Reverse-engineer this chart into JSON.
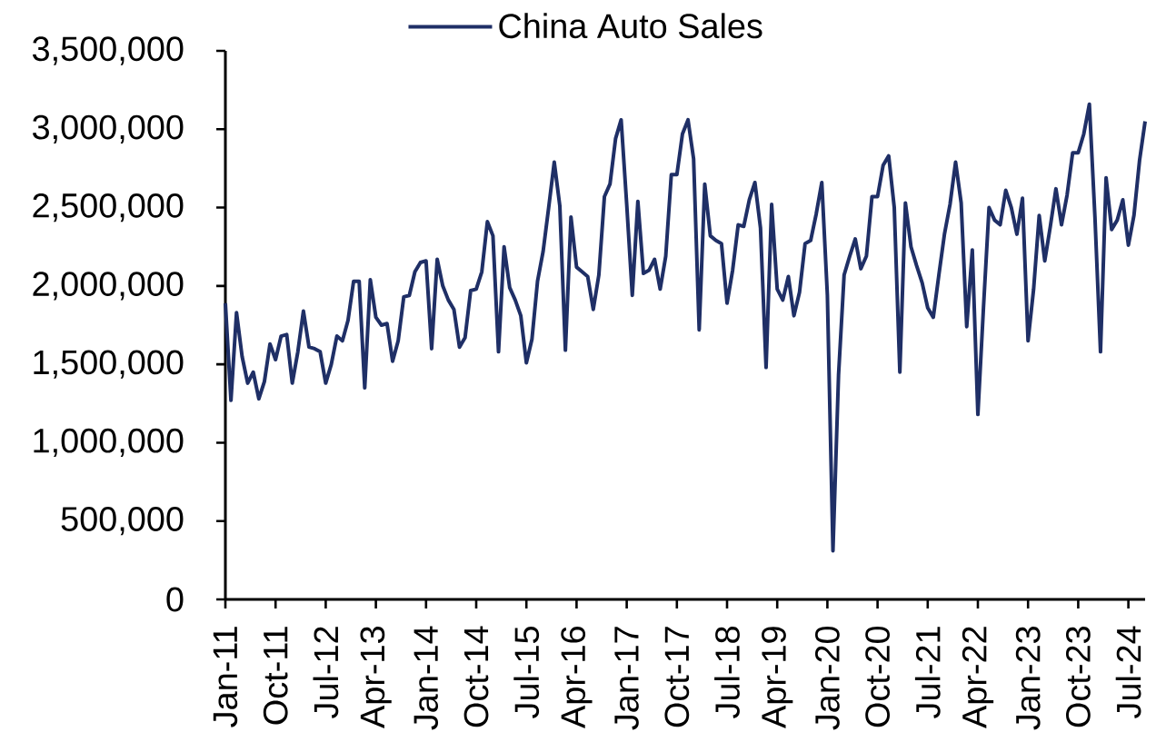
{
  "chart_data": {
    "type": "line",
    "x": [
      "2011-01",
      "2011-02",
      "2011-03",
      "2011-04",
      "2011-05",
      "2011-06",
      "2011-07",
      "2011-08",
      "2011-09",
      "2011-10",
      "2011-11",
      "2011-12",
      "2012-01",
      "2012-02",
      "2012-03",
      "2012-04",
      "2012-05",
      "2012-06",
      "2012-07",
      "2012-08",
      "2012-09",
      "2012-10",
      "2012-11",
      "2012-12",
      "2013-01",
      "2013-02",
      "2013-03",
      "2013-04",
      "2013-05",
      "2013-06",
      "2013-07",
      "2013-08",
      "2013-09",
      "2013-10",
      "2013-11",
      "2013-12",
      "2014-01",
      "2014-02",
      "2014-03",
      "2014-04",
      "2014-05",
      "2014-06",
      "2014-07",
      "2014-08",
      "2014-09",
      "2014-10",
      "2014-11",
      "2014-12",
      "2015-01",
      "2015-02",
      "2015-03",
      "2015-04",
      "2015-05",
      "2015-06",
      "2015-07",
      "2015-08",
      "2015-09",
      "2015-10",
      "2015-11",
      "2015-12",
      "2016-01",
      "2016-02",
      "2016-03",
      "2016-04",
      "2016-05",
      "2016-06",
      "2016-07",
      "2016-08",
      "2016-09",
      "2016-10",
      "2016-11",
      "2016-12",
      "2017-01",
      "2017-02",
      "2017-03",
      "2017-04",
      "2017-05",
      "2017-06",
      "2017-07",
      "2017-08",
      "2017-09",
      "2017-10",
      "2017-11",
      "2017-12",
      "2018-01",
      "2018-02",
      "2018-03",
      "2018-04",
      "2018-05",
      "2018-06",
      "2018-07",
      "2018-08",
      "2018-09",
      "2018-10",
      "2018-11",
      "2018-12",
      "2019-01",
      "2019-02",
      "2019-03",
      "2019-04",
      "2019-05",
      "2019-06",
      "2019-07",
      "2019-08",
      "2019-09",
      "2019-10",
      "2019-11",
      "2019-12",
      "2020-01",
      "2020-02",
      "2020-03",
      "2020-04",
      "2020-05",
      "2020-06",
      "2020-07",
      "2020-08",
      "2020-09",
      "2020-10",
      "2020-11",
      "2020-12",
      "2021-01",
      "2021-02",
      "2021-03",
      "2021-04",
      "2021-05",
      "2021-06",
      "2021-07",
      "2021-08",
      "2021-09",
      "2021-10",
      "2021-11",
      "2021-12",
      "2022-01",
      "2022-02",
      "2022-03",
      "2022-04",
      "2022-05",
      "2022-06",
      "2022-07",
      "2022-08",
      "2022-09",
      "2022-10",
      "2022-11",
      "2022-12",
      "2023-01",
      "2023-02",
      "2023-03",
      "2023-04",
      "2023-05",
      "2023-06",
      "2023-07",
      "2023-08",
      "2023-09",
      "2023-10",
      "2023-11",
      "2023-12",
      "2024-01",
      "2024-02",
      "2024-03",
      "2024-04",
      "2024-05",
      "2024-06",
      "2024-07",
      "2024-08",
      "2024-09",
      "2024-10"
    ],
    "series": [
      {
        "name": "China Auto Sales",
        "color": "#1f2f66",
        "values": [
          1890000,
          1270000,
          1830000,
          1550000,
          1380000,
          1450000,
          1280000,
          1390000,
          1630000,
          1530000,
          1680000,
          1690000,
          1380000,
          1580000,
          1840000,
          1610000,
          1600000,
          1580000,
          1380000,
          1500000,
          1680000,
          1650000,
          1780000,
          2030000,
          2030000,
          1350000,
          2040000,
          1800000,
          1750000,
          1760000,
          1520000,
          1650000,
          1930000,
          1940000,
          2090000,
          2150000,
          2160000,
          1600000,
          2170000,
          2000000,
          1910000,
          1850000,
          1610000,
          1670000,
          1970000,
          1980000,
          2090000,
          2410000,
          2320000,
          1580000,
          2250000,
          1990000,
          1910000,
          1810000,
          1510000,
          1660000,
          2030000,
          2220000,
          2500000,
          2790000,
          2510000,
          1590000,
          2440000,
          2120000,
          2090000,
          2060000,
          1850000,
          2070000,
          2570000,
          2650000,
          2940000,
          3060000,
          2520000,
          1940000,
          2540000,
          2080000,
          2100000,
          2170000,
          1980000,
          2190000,
          2710000,
          2710000,
          2970000,
          3060000,
          2810000,
          1720000,
          2650000,
          2320000,
          2290000,
          2270000,
          1890000,
          2100000,
          2390000,
          2380000,
          2550000,
          2660000,
          2370000,
          1480000,
          2520000,
          1980000,
          1910000,
          2060000,
          1810000,
          1960000,
          2270000,
          2290000,
          2460000,
          2660000,
          1940000,
          310000,
          1430000,
          2070000,
          2190000,
          2300000,
          2110000,
          2190000,
          2570000,
          2570000,
          2770000,
          2830000,
          2500000,
          1450000,
          2530000,
          2250000,
          2130000,
          2020000,
          1860000,
          1800000,
          2070000,
          2330000,
          2520000,
          2790000,
          2530000,
          1740000,
          2230000,
          1180000,
          1860000,
          2500000,
          2420000,
          2390000,
          2610000,
          2500000,
          2330000,
          2560000,
          1650000,
          1980000,
          2450000,
          2160000,
          2380000,
          2620000,
          2390000,
          2580000,
          2850000,
          2850000,
          2970000,
          3160000,
          2440000,
          1580000,
          2690000,
          2360000,
          2420000,
          2550000,
          2260000,
          2450000,
          2800000,
          3050000
        ]
      }
    ],
    "xlim": [
      "2011-01",
      "2024-10"
    ],
    "xticks": [
      {
        "value": "2011-01",
        "label": "Jan-11"
      },
      {
        "value": "2011-10",
        "label": "Oct-11"
      },
      {
        "value": "2012-07",
        "label": "Jul-12"
      },
      {
        "value": "2013-04",
        "label": "Apr-13"
      },
      {
        "value": "2014-01",
        "label": "Jan-14"
      },
      {
        "value": "2014-10",
        "label": "Oct-14"
      },
      {
        "value": "2015-07",
        "label": "Jul-15"
      },
      {
        "value": "2016-04",
        "label": "Apr-16"
      },
      {
        "value": "2017-01",
        "label": "Jan-17"
      },
      {
        "value": "2017-10",
        "label": "Oct-17"
      },
      {
        "value": "2018-07",
        "label": "Jul-18"
      },
      {
        "value": "2019-04",
        "label": "Apr-19"
      },
      {
        "value": "2020-01",
        "label": "Jan-20"
      },
      {
        "value": "2020-10",
        "label": "Oct-20"
      },
      {
        "value": "2021-07",
        "label": "Jul-21"
      },
      {
        "value": "2022-04",
        "label": "Apr-22"
      },
      {
        "value": "2023-01",
        "label": "Jan-23"
      },
      {
        "value": "2023-10",
        "label": "Oct-23"
      },
      {
        "value": "2024-07",
        "label": "Jul-24"
      }
    ],
    "ylim": [
      0,
      3500000
    ],
    "yticks": [
      0,
      {
        "value": 500000,
        "label": "500,000"
      },
      {
        "value": 1000000,
        "label": "1,000,000"
      },
      {
        "value": 1500000,
        "label": "1,500,000"
      },
      {
        "value": 2000000,
        "label": "2,000,000"
      },
      {
        "value": 2500000,
        "label": "2,500,000"
      },
      {
        "value": 3000000,
        "label": "3,000,000"
      },
      {
        "value": 3500000,
        "label": "3,500,000"
      }
    ],
    "legend": "top",
    "line_style": "solid"
  }
}
